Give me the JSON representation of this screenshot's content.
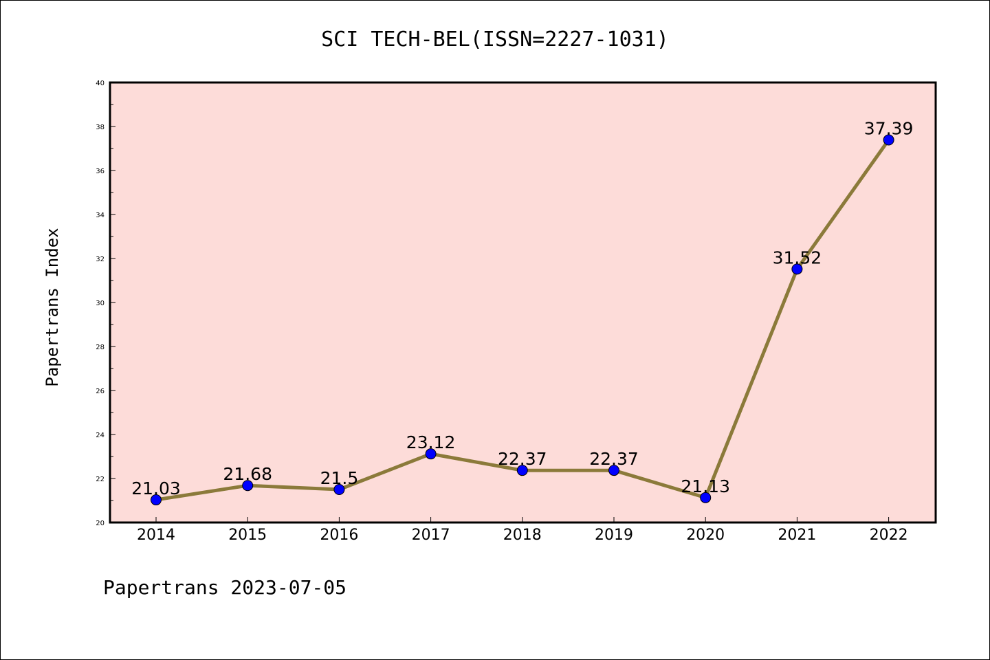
{
  "chart_data": {
    "type": "line",
    "title": "SCI TECH-BEL(ISSN=2227-1031)",
    "ylabel": "Papertrans Index",
    "xlabel": "",
    "categories": [
      "2014",
      "2015",
      "2016",
      "2017",
      "2018",
      "2019",
      "2020",
      "2021",
      "2022"
    ],
    "series": [
      {
        "values": [
          21.03,
          21.68,
          21.5,
          23.12,
          22.37,
          22.37,
          21.13,
          31.52,
          37.39
        ],
        "labels": [
          "21.03",
          "21.68",
          "21.5",
          "23.12",
          "22.37",
          "22.37",
          "21.13",
          "31.52",
          "37.39"
        ]
      }
    ],
    "ylim": [
      20,
      40
    ],
    "yticks": [
      "20",
      "22",
      "24",
      "26",
      "28",
      "30",
      "32",
      "34",
      "36",
      "38",
      "40"
    ],
    "grid": false,
    "legend": "none",
    "colors": {
      "plot_background": "#fddcd9",
      "line": "#8b7a3a",
      "marker": "#0000ff",
      "axis": "#000000"
    }
  },
  "footer": "Papertrans 2023-07-05"
}
